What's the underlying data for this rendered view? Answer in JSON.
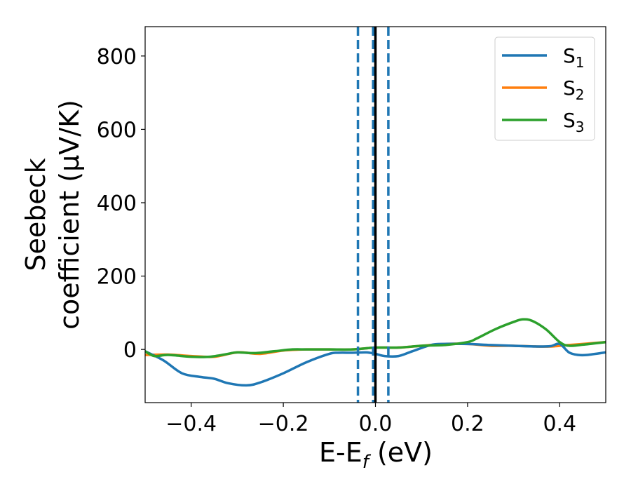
{
  "chart_data": {
    "type": "line",
    "xlabel": "E-E",
    "xlabel_sub": "f",
    "xlabel_suffix": " (eV)",
    "ylabel_line1": "Seebeck",
    "ylabel_line2": "coefficient  (μV/K)",
    "xlim": [
      -0.5,
      0.5
    ],
    "ylim": [
      -145,
      880
    ],
    "xticks": [
      -0.4,
      -0.2,
      0.0,
      0.2,
      0.4
    ],
    "xtick_labels": [
      "−0.4",
      "−0.2",
      "0.0",
      "0.2",
      "0.4"
    ],
    "yticks": [
      0,
      200,
      400,
      600,
      800
    ],
    "ytick_labels": [
      "0",
      "200",
      "400",
      "600",
      "800"
    ],
    "grid": false,
    "legend_position": "top-right",
    "series": [
      {
        "name": "S",
        "sub": "1",
        "color": "#1f77b4",
        "x": [
          -0.5,
          -0.46,
          -0.42,
          -0.38,
          -0.35,
          -0.32,
          -0.28,
          -0.25,
          -0.2,
          -0.15,
          -0.1,
          -0.08,
          -0.05,
          -0.02,
          0.0,
          0.02,
          0.05,
          0.08,
          0.12,
          0.15,
          0.2,
          0.25,
          0.3,
          0.35,
          0.38,
          0.4,
          0.42,
          0.44,
          0.46,
          0.5
        ],
        "y": [
          -5,
          -30,
          -65,
          -75,
          -80,
          -92,
          -98,
          -90,
          -65,
          -35,
          -12,
          -9,
          -9,
          -8,
          -12,
          -18,
          -18,
          -5,
          12,
          15,
          15,
          12,
          10,
          8,
          9,
          15,
          -8,
          -15,
          -15,
          -8
        ]
      },
      {
        "name": "S",
        "sub": "2",
        "color": "#ff7f0e",
        "x": [
          -0.5,
          -0.45,
          -0.4,
          -0.35,
          -0.3,
          -0.25,
          -0.2,
          -0.15,
          -0.1,
          -0.05,
          0.0,
          0.05,
          0.1,
          0.15,
          0.2,
          0.25,
          0.3,
          0.35,
          0.38,
          0.42,
          0.45,
          0.5
        ],
        "y": [
          -15,
          -14,
          -18,
          -20,
          -8,
          -12,
          -3,
          0,
          0,
          0,
          5,
          5,
          10,
          15,
          15,
          10,
          10,
          8,
          8,
          12,
          15,
          20
        ]
      },
      {
        "name": "S",
        "sub": "3",
        "color": "#2ca02c",
        "x": [
          -0.5,
          -0.48,
          -0.45,
          -0.4,
          -0.36,
          -0.32,
          -0.3,
          -0.26,
          -0.22,
          -0.18,
          -0.15,
          -0.1,
          -0.05,
          0.0,
          0.05,
          0.1,
          0.15,
          0.2,
          0.22,
          0.26,
          0.3,
          0.32,
          0.34,
          0.37,
          0.4,
          0.42,
          0.45,
          0.5
        ],
        "y": [
          -5,
          -18,
          -15,
          -20,
          -20,
          -12,
          -8,
          -10,
          -5,
          0,
          0,
          0,
          0,
          5,
          5,
          10,
          12,
          20,
          30,
          55,
          75,
          82,
          78,
          55,
          20,
          10,
          13,
          20
        ]
      }
    ],
    "vlines": [
      {
        "x": -0.038,
        "style": "dashed",
        "color": "#1f77b4"
      },
      {
        "x": -0.005,
        "style": "dashed",
        "color": "#1f77b4"
      },
      {
        "x": 0.028,
        "style": "dashed",
        "color": "#1f77b4"
      },
      {
        "x": 0.0,
        "style": "solid",
        "color": "#000000"
      }
    ]
  }
}
